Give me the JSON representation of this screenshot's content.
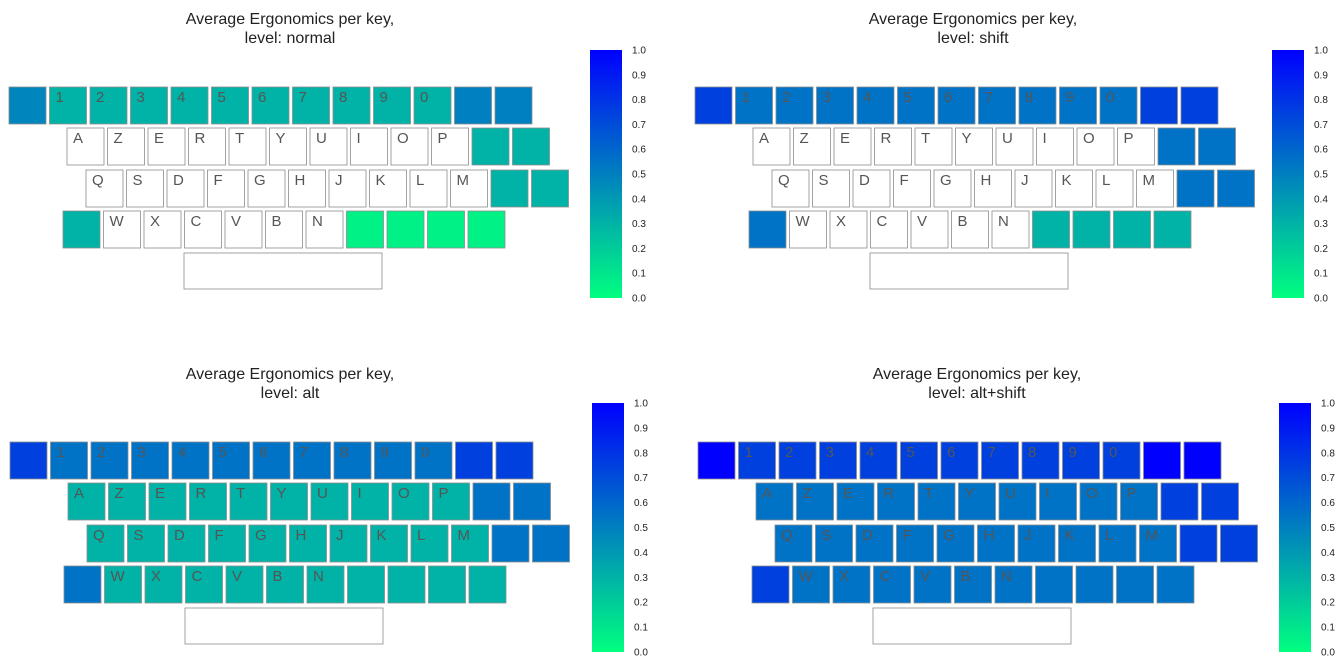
{
  "colormap": {
    "low": "#00ff80",
    "high": "#0000ff",
    "empty_fill": "#ffffff",
    "key_border": "#8c8c8c"
  },
  "chart_data": [
    {
      "type": "heatmap",
      "title_line1": "Average Ergonomics per key,",
      "title_line2": "level: normal",
      "colorbar": {
        "range": [
          0,
          1
        ],
        "ticks": [
          "0.0",
          "0.1",
          "0.2",
          "0.3",
          "0.4",
          "0.5",
          "0.6",
          "0.7",
          "0.8",
          "0.9",
          "1.0"
        ]
      },
      "rows": [
        {
          "labels": [
            "",
            "1",
            "2",
            "3",
            "4",
            "5",
            "6",
            "7",
            "8",
            "9",
            "0",
            "",
            ""
          ],
          "values": [
            0.48,
            0.3,
            0.3,
            0.3,
            0.3,
            0.3,
            0.3,
            0.3,
            0.3,
            0.3,
            0.3,
            0.5,
            0.5
          ]
        },
        {
          "labels": [
            "A",
            "Z",
            "E",
            "R",
            "T",
            "Y",
            "U",
            "I",
            "O",
            "P",
            "",
            ""
          ],
          "values": [
            null,
            null,
            null,
            null,
            null,
            null,
            null,
            null,
            null,
            null,
            0.3,
            0.3
          ]
        },
        {
          "labels": [
            "Q",
            "S",
            "D",
            "F",
            "G",
            "H",
            "J",
            "K",
            "L",
            "M",
            "",
            ""
          ],
          "values": [
            null,
            null,
            null,
            null,
            null,
            null,
            null,
            null,
            null,
            null,
            0.3,
            0.3
          ]
        },
        {
          "labels": [
            "",
            "W",
            "X",
            "C",
            "V",
            "B",
            "N",
            "",
            "",
            "",
            ""
          ],
          "values": [
            0.3,
            null,
            null,
            null,
            null,
            null,
            null,
            0.05,
            0.05,
            0.05,
            0.05
          ]
        }
      ],
      "space": null
    },
    {
      "type": "heatmap",
      "title_line1": "Average Ergonomics per key,",
      "title_line2": "level: shift",
      "colorbar": {
        "range": [
          0,
          1
        ],
        "ticks": [
          "0.0",
          "0.1",
          "0.2",
          "0.3",
          "0.4",
          "0.5",
          "0.6",
          "0.7",
          "0.8",
          "0.9",
          "1.0"
        ]
      },
      "rows": [
        {
          "labels": [
            "",
            "1",
            "2",
            "3",
            "4",
            "5",
            "6",
            "7",
            "8",
            "9",
            "0",
            "",
            ""
          ],
          "values": [
            0.75,
            0.55,
            0.55,
            0.55,
            0.55,
            0.55,
            0.55,
            0.55,
            0.55,
            0.55,
            0.55,
            0.75,
            0.75
          ]
        },
        {
          "labels": [
            "A",
            "Z",
            "E",
            "R",
            "T",
            "Y",
            "U",
            "I",
            "O",
            "P",
            "",
            ""
          ],
          "values": [
            null,
            null,
            null,
            null,
            null,
            null,
            null,
            null,
            null,
            null,
            0.55,
            0.55
          ]
        },
        {
          "labels": [
            "Q",
            "S",
            "D",
            "F",
            "G",
            "H",
            "J",
            "K",
            "L",
            "M",
            "",
            ""
          ],
          "values": [
            null,
            null,
            null,
            null,
            null,
            null,
            null,
            null,
            null,
            null,
            0.55,
            0.55
          ]
        },
        {
          "labels": [
            "",
            "W",
            "X",
            "C",
            "V",
            "B",
            "N",
            "",
            "",
            "",
            ""
          ],
          "values": [
            0.55,
            null,
            null,
            null,
            null,
            null,
            null,
            0.3,
            0.3,
            0.3,
            0.3
          ]
        }
      ],
      "space": null
    },
    {
      "type": "heatmap",
      "title_line1": "Average Ergonomics per key,",
      "title_line2": "level: alt",
      "colorbar": {
        "range": [
          0,
          1
        ],
        "ticks": [
          "0.0",
          "0.1",
          "0.2",
          "0.3",
          "0.4",
          "0.5",
          "0.6",
          "0.7",
          "0.8",
          "0.9",
          "1.0"
        ]
      },
      "rows": [
        {
          "labels": [
            "",
            "1",
            "2",
            "3",
            "4",
            "5",
            "6",
            "7",
            "8",
            "9",
            "0",
            "",
            ""
          ],
          "values": [
            0.75,
            0.55,
            0.55,
            0.55,
            0.55,
            0.55,
            0.55,
            0.55,
            0.55,
            0.55,
            0.55,
            0.75,
            0.75
          ]
        },
        {
          "labels": [
            "A",
            "Z",
            "E",
            "R",
            "T",
            "Y",
            "U",
            "I",
            "O",
            "P",
            "",
            ""
          ],
          "values": [
            0.3,
            0.3,
            0.3,
            0.3,
            0.3,
            0.3,
            0.3,
            0.3,
            0.3,
            0.3,
            0.55,
            0.55
          ]
        },
        {
          "labels": [
            "Q",
            "S",
            "D",
            "F",
            "G",
            "H",
            "J",
            "K",
            "L",
            "M",
            "",
            ""
          ],
          "values": [
            0.3,
            0.3,
            0.3,
            0.3,
            0.3,
            0.3,
            0.3,
            0.3,
            0.3,
            0.3,
            0.55,
            0.55
          ]
        },
        {
          "labels": [
            "",
            "W",
            "X",
            "C",
            "V",
            "B",
            "N",
            "",
            "",
            "",
            ""
          ],
          "values": [
            0.55,
            0.3,
            0.3,
            0.3,
            0.3,
            0.3,
            0.3,
            0.3,
            0.3,
            0.3,
            0.3
          ]
        }
      ],
      "space": null
    },
    {
      "type": "heatmap",
      "title_line1": "Average Ergonomics per key,",
      "title_line2": "level: alt+shift",
      "colorbar": {
        "range": [
          0,
          1
        ],
        "ticks": [
          "0.0",
          "0.1",
          "0.2",
          "0.3",
          "0.4",
          "0.5",
          "0.6",
          "0.7",
          "0.8",
          "0.9",
          "1.0"
        ]
      },
      "rows": [
        {
          "labels": [
            "",
            "1",
            "2",
            "3",
            "4",
            "5",
            "6",
            "7",
            "8",
            "9",
            "0",
            "",
            ""
          ],
          "values": [
            1.0,
            0.75,
            0.75,
            0.75,
            0.75,
            0.75,
            0.75,
            0.75,
            0.75,
            0.75,
            0.75,
            1.0,
            1.0
          ]
        },
        {
          "labels": [
            "A",
            "Z",
            "E",
            "R",
            "T",
            "Y",
            "U",
            "I",
            "O",
            "P",
            "",
            ""
          ],
          "values": [
            0.55,
            0.55,
            0.55,
            0.55,
            0.55,
            0.55,
            0.55,
            0.55,
            0.55,
            0.55,
            0.75,
            0.75
          ]
        },
        {
          "labels": [
            "Q",
            "S",
            "D",
            "F",
            "G",
            "H",
            "J",
            "K",
            "L",
            "M",
            "",
            ""
          ],
          "values": [
            0.55,
            0.55,
            0.55,
            0.55,
            0.55,
            0.55,
            0.55,
            0.55,
            0.55,
            0.55,
            0.75,
            0.75
          ]
        },
        {
          "labels": [
            "",
            "W",
            "X",
            "C",
            "V",
            "B",
            "N",
            "",
            "",
            "",
            ""
          ],
          "values": [
            0.75,
            0.55,
            0.55,
            0.55,
            0.55,
            0.55,
            0.55,
            0.55,
            0.55,
            0.55,
            0.55
          ]
        }
      ],
      "space": null
    }
  ]
}
